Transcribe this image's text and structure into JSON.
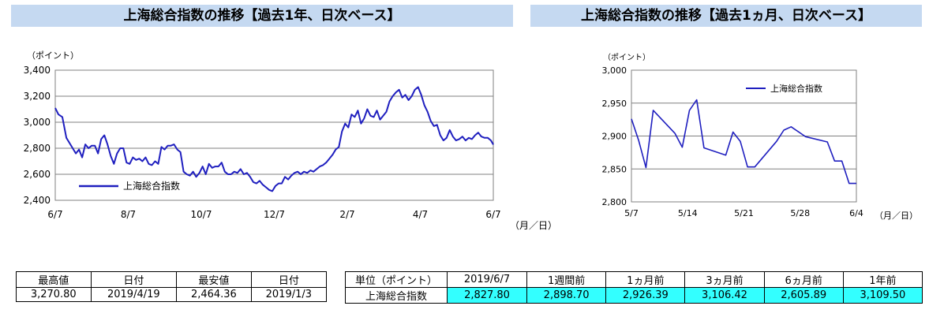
{
  "title_left": "上海総合指数の推移【過去1年、日次ベース】",
  "title_right": "上海総合指数の推移【過去1ヵ月、日次ベース】",
  "chart_data": [
    {
      "type": "line",
      "ylabel": "（ポイント）",
      "xlabel": "（月／日）",
      "ylim": [
        2400,
        3400
      ],
      "yticks": [
        "2,400",
        "2,600",
        "2,800",
        "3,000",
        "3,200",
        "3,400"
      ],
      "x_ticks": [
        "6/7",
        "8/7",
        "10/7",
        "12/7",
        "2/7",
        "4/7",
        "6/7"
      ],
      "grid": true,
      "legend": "bottom-left",
      "series": [
        {
          "name": "上海総合指数",
          "color": "#1f1fbf",
          "points": [
            [
              0,
              3110
            ],
            [
              4,
              3060
            ],
            [
              9,
              3040
            ],
            [
              14,
              2880
            ],
            [
              18,
              2840
            ],
            [
              22,
              2800
            ],
            [
              26,
              2760
            ],
            [
              30,
              2790
            ],
            [
              34,
              2730
            ],
            [
              38,
              2830
            ],
            [
              42,
              2800
            ],
            [
              46,
              2820
            ],
            [
              50,
              2820
            ],
            [
              54,
              2760
            ],
            [
              58,
              2870
            ],
            [
              62,
              2900
            ],
            [
              66,
              2830
            ],
            [
              70,
              2740
            ],
            [
              74,
              2680
            ],
            [
              78,
              2760
            ],
            [
              82,
              2800
            ],
            [
              86,
              2800
            ],
            [
              90,
              2690
            ],
            [
              94,
              2680
            ],
            [
              98,
              2730
            ],
            [
              102,
              2710
            ],
            [
              106,
              2720
            ],
            [
              110,
              2700
            ],
            [
              114,
              2730
            ],
            [
              118,
              2680
            ],
            [
              122,
              2670
            ],
            [
              126,
              2700
            ],
            [
              130,
              2680
            ],
            [
              134,
              2810
            ],
            [
              138,
              2790
            ],
            [
              142,
              2820
            ],
            [
              146,
              2820
            ],
            [
              150,
              2830
            ],
            [
              154,
              2790
            ],
            [
              158,
              2770
            ],
            [
              162,
              2620
            ],
            [
              166,
              2600
            ],
            [
              170,
              2590
            ],
            [
              174,
              2620
            ],
            [
              178,
              2580
            ],
            [
              182,
              2610
            ],
            [
              186,
              2660
            ],
            [
              190,
              2600
            ],
            [
              194,
              2680
            ],
            [
              198,
              2650
            ],
            [
              202,
              2660
            ],
            [
              206,
              2660
            ],
            [
              210,
              2690
            ],
            [
              214,
              2620
            ],
            [
              218,
              2600
            ],
            [
              222,
              2600
            ],
            [
              226,
              2620
            ],
            [
              230,
              2610
            ],
            [
              234,
              2640
            ],
            [
              238,
              2600
            ],
            [
              242,
              2610
            ],
            [
              246,
              2580
            ],
            [
              250,
              2540
            ],
            [
              254,
              2530
            ],
            [
              258,
              2550
            ],
            [
              262,
              2520
            ],
            [
              266,
              2500
            ],
            [
              270,
              2480
            ],
            [
              274,
              2470
            ],
            [
              278,
              2510
            ],
            [
              282,
              2530
            ],
            [
              286,
              2530
            ],
            [
              290,
              2580
            ],
            [
              294,
              2560
            ],
            [
              298,
              2590
            ],
            [
              302,
              2610
            ],
            [
              306,
              2620
            ],
            [
              310,
              2600
            ],
            [
              314,
              2620
            ],
            [
              318,
              2610
            ],
            [
              322,
              2630
            ],
            [
              326,
              2620
            ],
            [
              330,
              2640
            ],
            [
              334,
              2660
            ],
            [
              338,
              2670
            ],
            [
              342,
              2690
            ],
            [
              346,
              2720
            ],
            [
              350,
              2750
            ],
            [
              354,
              2790
            ],
            [
              358,
              2810
            ],
            [
              362,
              2930
            ],
            [
              366,
              2990
            ],
            [
              370,
              2960
            ],
            [
              374,
              3060
            ],
            [
              378,
              3040
            ],
            [
              382,
              3090
            ],
            [
              386,
              2990
            ],
            [
              390,
              3030
            ],
            [
              394,
              3100
            ],
            [
              398,
              3050
            ],
            [
              402,
              3040
            ],
            [
              406,
              3090
            ],
            [
              410,
              3020
            ],
            [
              414,
              3050
            ],
            [
              418,
              3080
            ],
            [
              422,
              3160
            ],
            [
              426,
              3200
            ],
            [
              430,
              3230
            ],
            [
              434,
              3250
            ],
            [
              438,
              3190
            ],
            [
              442,
              3210
            ],
            [
              446,
              3170
            ],
            [
              450,
              3200
            ],
            [
              454,
              3250
            ],
            [
              458,
              3270
            ],
            [
              462,
              3210
            ],
            [
              466,
              3130
            ],
            [
              470,
              3080
            ],
            [
              474,
              3010
            ],
            [
              478,
              2970
            ],
            [
              482,
              2980
            ],
            [
              486,
              2900
            ],
            [
              490,
              2860
            ],
            [
              494,
              2880
            ],
            [
              498,
              2940
            ],
            [
              502,
              2890
            ],
            [
              506,
              2860
            ],
            [
              510,
              2870
            ],
            [
              514,
              2890
            ],
            [
              518,
              2860
            ],
            [
              522,
              2880
            ],
            [
              526,
              2870
            ],
            [
              530,
              2900
            ],
            [
              534,
              2920
            ],
            [
              538,
              2890
            ],
            [
              542,
              2880
            ],
            [
              546,
              2880
            ],
            [
              550,
              2860
            ],
            [
              553,
              2828
            ]
          ]
        }
      ]
    },
    {
      "type": "line",
      "ylabel": "（ポイント）",
      "xlabel": "（月／日）",
      "ylim": [
        2800,
        3000
      ],
      "yticks": [
        "2,800",
        "2,850",
        "2,900",
        "2,950",
        "3,000"
      ],
      "x_ticks": [
        "5/7",
        "5/14",
        "5/21",
        "5/28",
        "6/4"
      ],
      "grid": true,
      "legend": "top-right",
      "series": [
        {
          "name": "上海総合指数",
          "color": "#1f1fbf",
          "points": [
            [
              0,
              2926
            ],
            [
              1,
              2893
            ],
            [
              2,
              2852
            ],
            [
              3,
              2939
            ],
            [
              6,
              2904
            ],
            [
              7,
              2883
            ],
            [
              8,
              2939
            ],
            [
              9,
              2955
            ],
            [
              10,
              2882
            ],
            [
              13,
              2871
            ],
            [
              14,
              2906
            ],
            [
              15,
              2892
            ],
            [
              16,
              2853
            ],
            [
              17,
              2853
            ],
            [
              20,
              2892
            ],
            [
              21,
              2909
            ],
            [
              22,
              2914
            ],
            [
              24,
              2899
            ],
            [
              27,
              2891
            ],
            [
              28,
              2862
            ],
            [
              29,
              2862
            ],
            [
              30,
              2828
            ],
            [
              31,
              2828
            ]
          ]
        }
      ]
    }
  ],
  "table1": {
    "headers": [
      "最高値",
      "日付",
      "最安値",
      "日付"
    ],
    "values": [
      "3,270.80",
      "2019/4/19",
      "2,464.36",
      "2019/1/3"
    ]
  },
  "table2": {
    "headers": [
      "単位（ポイント）",
      "2019/6/7",
      "1週間前",
      "1ヵ月前",
      "3ヵ月前",
      "6ヵ月前",
      "1年前"
    ],
    "row_label": "上海総合指数",
    "values": [
      "2,827.80",
      "2,898.70",
      "2,926.39",
      "3,106.42",
      "2,605.89",
      "3,109.50"
    ]
  }
}
